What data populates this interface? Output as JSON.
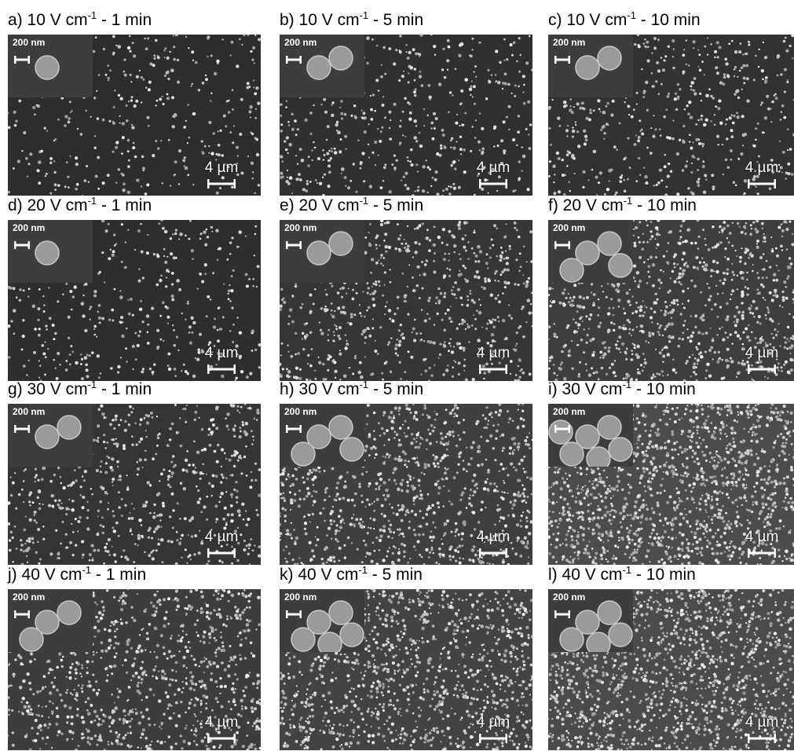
{
  "figure": {
    "inset_scale": "200 nm",
    "main_scale": "4 µm",
    "panels": [
      {
        "letter": "a)",
        "field": "10 V cm",
        "exp": "-1",
        "time": " - 1 min",
        "density": 0.18,
        "inset_particles": 1
      },
      {
        "letter": "b)",
        "field": "10 V cm",
        "exp": "-1",
        "time": " - 5 min",
        "density": 0.26,
        "inset_particles": 2
      },
      {
        "letter": "c)",
        "field": "10 V cm",
        "exp": "-1",
        "time": " - 10 min",
        "density": 0.3,
        "inset_particles": 2
      },
      {
        "letter": "d)",
        "field": "20 V cm",
        "exp": "-1",
        "time": " - 1 min",
        "density": 0.2,
        "inset_particles": 1
      },
      {
        "letter": "e)",
        "field": "20 V cm",
        "exp": "-1",
        "time": " - 5 min",
        "density": 0.4,
        "inset_particles": 2
      },
      {
        "letter": "f)",
        "field": "20 V cm",
        "exp": "-1",
        "time": " - 10 min",
        "density": 0.6,
        "inset_particles": 4
      },
      {
        "letter": "g)",
        "field": "30 V cm",
        "exp": "-1",
        "time": " - 1 min",
        "density": 0.38,
        "inset_particles": 2
      },
      {
        "letter": "h)",
        "field": "30 V cm",
        "exp": "-1",
        "time": " - 5 min",
        "density": 0.62,
        "inset_particles": 4
      },
      {
        "letter": "i)",
        "field": "30 V cm",
        "exp": "-1",
        "time": " - 10 min",
        "density": 0.95,
        "inset_particles": 6
      },
      {
        "letter": "j)",
        "field": "40 V cm",
        "exp": "-1",
        "time": " - 1 min",
        "density": 0.58,
        "inset_particles": 3
      },
      {
        "letter": "k)",
        "field": "40 V cm",
        "exp": "-1",
        "time": " - 5 min",
        "density": 0.72,
        "inset_particles": 5
      },
      {
        "letter": "l)",
        "field": "40 V cm",
        "exp": "-1",
        "time": " - 10 min",
        "density": 0.92,
        "inset_particles": 5
      }
    ]
  }
}
